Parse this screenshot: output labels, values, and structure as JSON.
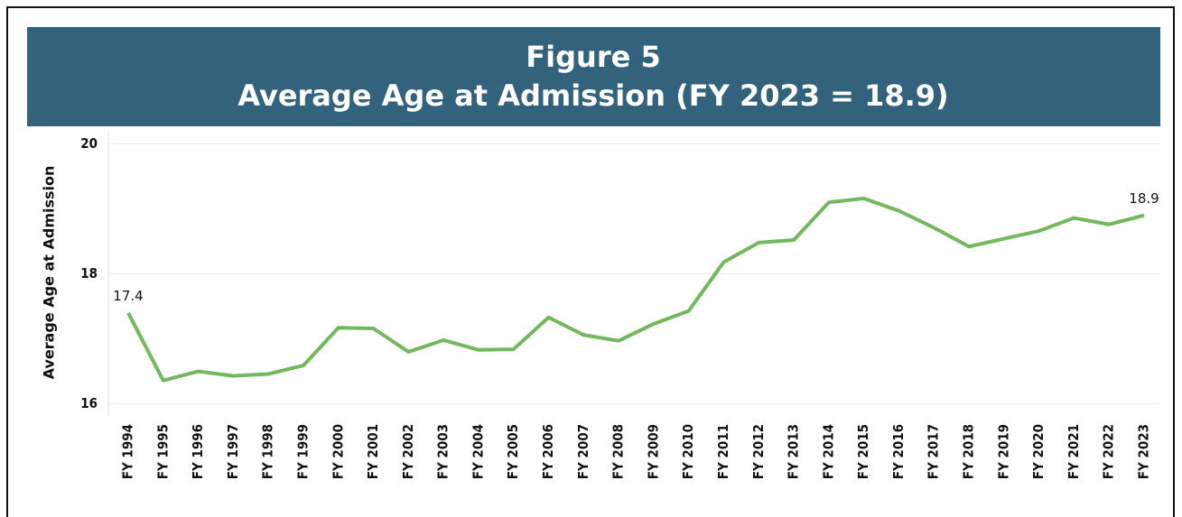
{
  "chart_data": {
    "type": "line",
    "title": "Figure 5",
    "subtitle": "Average Age at Admission (FY 2023 = 18.9)",
    "y_label": "Average Age at Admission",
    "categories": [
      "FY 1994",
      "FY 1995",
      "FY 1996",
      "FY 1997",
      "FY 1998",
      "FY 1999",
      "FY 2000",
      "FY 2001",
      "FY 2002",
      "FY 2003",
      "FY 2004",
      "FY 2005",
      "FY 2006",
      "FY 2007",
      "FY 2008",
      "FY 2009",
      "FY 2010",
      "FY 2011",
      "FY 2012",
      "FY 2013",
      "FY 2014",
      "FY 2015",
      "FY 2016",
      "FY 2017",
      "FY 2018",
      "FY 2019",
      "FY 2020",
      "FY 2021",
      "FY 2022",
      "FY 2023"
    ],
    "values": [
      17.4,
      16.36,
      16.5,
      16.43,
      16.46,
      16.59,
      17.17,
      17.16,
      16.8,
      16.98,
      16.83,
      16.84,
      17.33,
      17.06,
      16.97,
      17.23,
      17.43,
      18.18,
      18.48,
      18.52,
      19.1,
      19.16,
      18.97,
      18.71,
      18.42,
      18.54,
      18.66,
      18.86,
      18.76,
      18.9
    ],
    "value_labels": [
      "17.4",
      null,
      null,
      null,
      null,
      null,
      null,
      null,
      null,
      null,
      null,
      null,
      null,
      null,
      null,
      null,
      null,
      null,
      null,
      null,
      null,
      null,
      null,
      null,
      null,
      null,
      null,
      null,
      null,
      "18.9"
    ],
    "color": "#72b85c",
    "ylim": [
      15.8,
      20.2
    ],
    "yticks": [
      16,
      18,
      20
    ],
    "grid": true
  }
}
